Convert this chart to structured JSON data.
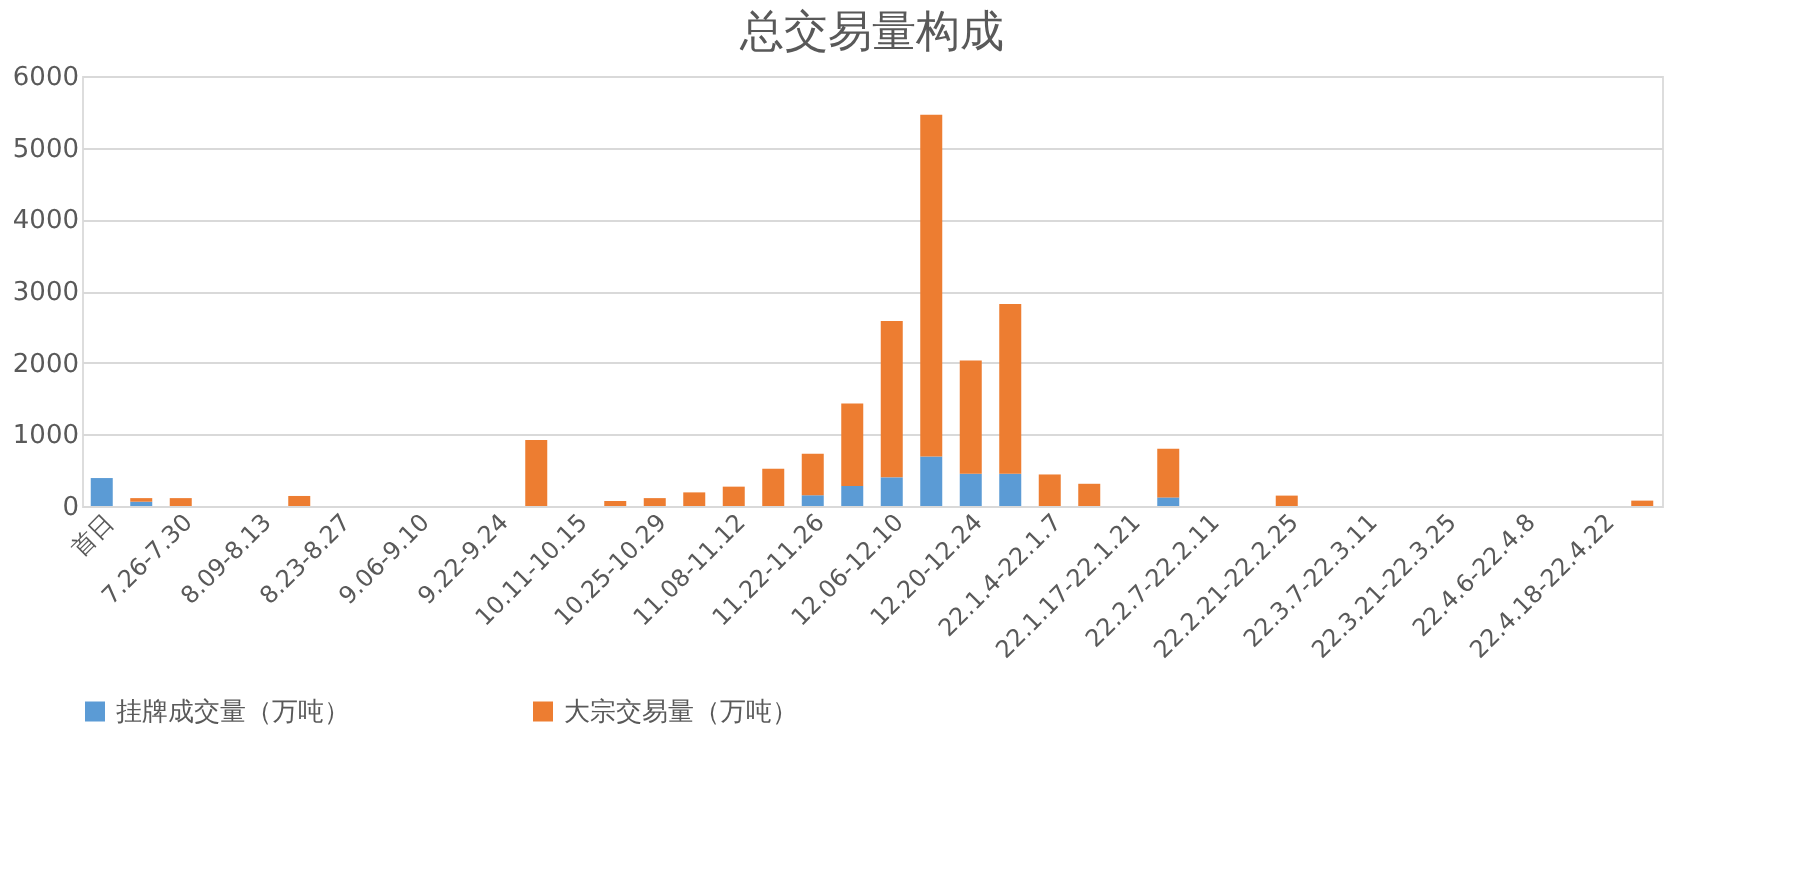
{
  "chart_data": {
    "type": "bar",
    "title": "总交易量构成",
    "stacked": true,
    "categories": [
      "首日",
      null,
      "7.26-7.30",
      null,
      "8.09-8.13",
      null,
      "8.23-8.27",
      null,
      "9.06-9.10",
      null,
      "9.22-9.24",
      null,
      "10.11-10.15",
      null,
      "10.25-10.29",
      null,
      "11.08-11.12",
      null,
      "11.22-11.26",
      null,
      "12.06-12.10",
      null,
      "12.20-12.24",
      null,
      "22.1.4-22.1.7",
      null,
      "22.1.17-22.1.21",
      null,
      "22.2.7-22.2.11",
      null,
      "22.2.21-22.2.25",
      null,
      "22.3.7-22.3.11",
      null,
      "22.3.21-22.3.25",
      null,
      "22.4.6-22.4.8",
      null,
      "22.4.18-22.4.22",
      null
    ],
    "series": [
      {
        "name": "挂牌成交量（万吨）",
        "color": "#5b9bd5",
        "values": [
          390,
          60,
          null,
          null,
          null,
          null,
          null,
          null,
          null,
          null,
          null,
          null,
          null,
          null,
          null,
          null,
          null,
          null,
          150,
          280,
          400,
          690,
          450,
          450,
          null,
          null,
          null,
          120,
          null,
          null,
          null,
          null,
          null,
          null,
          null,
          null,
          null,
          null,
          null,
          null
        ]
      },
      {
        "name": "大宗交易量（万吨）",
        "color": "#ed7d31",
        "values": [
          null,
          50,
          110,
          null,
          null,
          140,
          null,
          null,
          null,
          null,
          null,
          920,
          null,
          70,
          110,
          190,
          270,
          520,
          580,
          1150,
          2180,
          4770,
          1580,
          2370,
          440,
          310,
          null,
          680,
          null,
          null,
          145,
          null,
          null,
          null,
          null,
          null,
          null,
          null,
          null,
          75
        ]
      }
    ],
    "ylim": [
      0,
      6000
    ],
    "yticks": [
      0,
      1000,
      2000,
      3000,
      4000,
      5000,
      6000
    ],
    "grid": "y",
    "legend": "bottom"
  }
}
